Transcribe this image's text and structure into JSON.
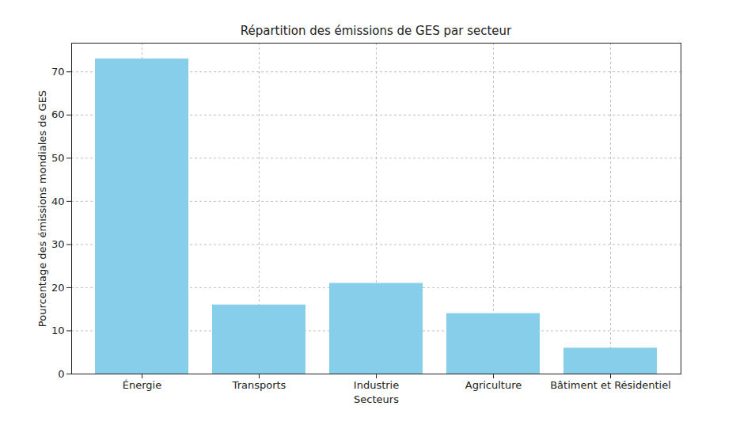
{
  "chart_data": {
    "type": "bar",
    "title": "Répartition des émissions de GES par secteur",
    "x_label": "Secteurs",
    "y_label": "Pourcentage des émissions mondiales de GES",
    "categories": [
      "Énergie",
      "Transports",
      "Industrie",
      "Agriculture",
      "Bâtiment et Résidentiel"
    ],
    "values": [
      73,
      16,
      21,
      14,
      6
    ],
    "color": "#87ceeb",
    "ylim": [
      0,
      76.65
    ],
    "yticks": [
      0,
      10,
      20,
      30,
      40,
      50,
      60,
      70
    ],
    "grid": true
  }
}
